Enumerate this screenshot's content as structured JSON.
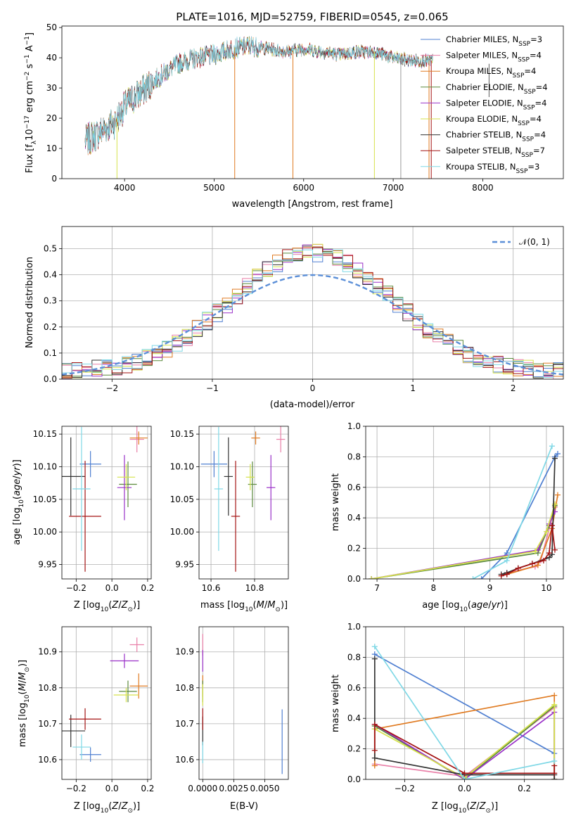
{
  "chart_data": [
    {
      "type": "line",
      "title": "PLATE=1016, MJD=52759, FIBERID=0545, z=0.065",
      "xlabel": "wavelength [Angstrom, rest frame]",
      "ylabel": "Flux [f_λ 10^-17 erg cm^-2 s^-1 A^-1]",
      "xlim": [
        3300,
        8900
      ],
      "ylim": [
        0,
        50.5
      ],
      "xticks": [
        4000,
        5000,
        6000,
        7000,
        8000
      ],
      "yticks": [
        0,
        10,
        20,
        30,
        40,
        50
      ],
      "grid": false,
      "legend_position": "top-right",
      "series": [
        {
          "name": "Chabrier MILES, N_SSP=3",
          "color": "#4f7fd1"
        },
        {
          "name": "Salpeter MILES, N_SSP=4",
          "color": "#e97fa8"
        },
        {
          "name": "Kroupa MILES, N_SSP=4",
          "color": "#e07b22"
        },
        {
          "name": "Chabrier ELODIE, N_SSP=4",
          "color": "#5b8a3c"
        },
        {
          "name": "Salpeter ELODIE, N_SSP=4",
          "color": "#9a30c8"
        },
        {
          "name": "Kroupa ELODIE, N_SSP=4",
          "color": "#d6e24b"
        },
        {
          "name": "Chabrier STELIB, N_SSP=4",
          "color": "#333333"
        },
        {
          "name": "Salpeter STELIB, N_SSP=7",
          "color": "#a41212"
        },
        {
          "name": "Kroupa STELIB, N_SSP=3",
          "color": "#7fd8e6"
        }
      ],
      "continuum_x": [
        3550,
        3700,
        3900,
        4000,
        4200,
        4400,
        4600,
        4800,
        5000,
        5200,
        5400,
        5600,
        5800,
        6000,
        6200,
        6400,
        6600,
        6800,
        7000,
        7200,
        7400,
        7600,
        7800,
        8000,
        8200,
        8400,
        8800
      ],
      "continuum_y": [
        12,
        15,
        19,
        24,
        29,
        34,
        38,
        40,
        41,
        43,
        44,
        43,
        42,
        43,
        42,
        41,
        42,
        42,
        40,
        39,
        39,
        40,
        39,
        38,
        38,
        38,
        37
      ]
    },
    {
      "type": "histogram",
      "xlabel": "(data-model)/error",
      "ylabel": "Normed distribution",
      "xlim": [
        -2.5,
        2.5
      ],
      "ylim": [
        0,
        0.585
      ],
      "xticks": [
        -2,
        -1,
        0,
        1,
        2
      ],
      "yticks": [
        0.0,
        0.1,
        0.2,
        0.3,
        0.4,
        0.5
      ],
      "grid": true,
      "legend_position": "top-right",
      "legend": [
        "N(0, 1)"
      ],
      "bin_width": 0.1,
      "bin_start": -2.5,
      "reference_curve": {
        "name": "N(0, 1)",
        "color": "#5b8fd8",
        "style": "dashed"
      }
    },
    {
      "type": "scatter",
      "xlabel": "Z [log10(Z/Z_sun)]",
      "ylabel": "age [log10(age/yr)]",
      "xlim": [
        -0.28,
        0.22
      ],
      "ylim": [
        9.928,
        10.162
      ],
      "xticks": [
        -0.2,
        0.0,
        0.2
      ],
      "yticks": [
        9.95,
        10.0,
        10.05,
        10.1,
        10.15
      ],
      "grid": true,
      "points": [
        {
          "x": -0.12,
          "y": 10.104,
          "xerr": 0.06,
          "yerr": 0.02,
          "color": "#4f7fd1"
        },
        {
          "x": 0.14,
          "y": 10.142,
          "xerr": 0.04,
          "yerr": 0.02,
          "color": "#e97fa8"
        },
        {
          "x": 0.15,
          "y": 10.144,
          "xerr": 0.05,
          "yerr": 0.01,
          "color": "#e07b22"
        },
        {
          "x": 0.09,
          "y": 10.073,
          "xerr": 0.05,
          "yerr": 0.035,
          "color": "#5b8a3c"
        },
        {
          "x": 0.07,
          "y": 10.068,
          "xerr": 0.04,
          "yerr": 0.05,
          "color": "#9a30c8"
        },
        {
          "x": 0.08,
          "y": 10.084,
          "xerr": 0.05,
          "yerr": 0.02,
          "color": "#d6e24b"
        },
        {
          "x": -0.23,
          "y": 10.085,
          "xerr": 0.08,
          "yerr": 0.06,
          "color": "#333333"
        },
        {
          "x": -0.15,
          "y": 10.024,
          "xerr": 0.09,
          "yerr": 0.085,
          "color": "#a41212"
        },
        {
          "x": -0.17,
          "y": 10.066,
          "xerr": 0.05,
          "yerr": 0.095,
          "color": "#7fd8e6"
        }
      ]
    },
    {
      "type": "scatter",
      "xlabel": "mass [log10(M/M_sun)]",
      "ylabel": "",
      "xlim": [
        10.545,
        10.955
      ],
      "ylim": [
        9.928,
        10.162
      ],
      "xticks": [
        10.6,
        10.8
      ],
      "yticks": [
        9.95,
        10.0,
        10.05,
        10.1,
        10.15
      ],
      "grid": true,
      "points": [
        {
          "x": 10.614,
          "y": 10.104,
          "xerr": 0.06,
          "yerr": 0.02,
          "color": "#4f7fd1"
        },
        {
          "x": 10.92,
          "y": 10.142,
          "xerr": 0.02,
          "yerr": 0.02,
          "color": "#e97fa8"
        },
        {
          "x": 10.805,
          "y": 10.144,
          "xerr": 0.02,
          "yerr": 0.01,
          "color": "#e07b22"
        },
        {
          "x": 10.79,
          "y": 10.073,
          "xerr": 0.02,
          "yerr": 0.035,
          "color": "#5b8a3c"
        },
        {
          "x": 10.875,
          "y": 10.068,
          "xerr": 0.02,
          "yerr": 0.05,
          "color": "#9a30c8"
        },
        {
          "x": 10.78,
          "y": 10.084,
          "xerr": 0.02,
          "yerr": 0.02,
          "color": "#d6e24b"
        },
        {
          "x": 10.68,
          "y": 10.085,
          "xerr": 0.02,
          "yerr": 0.06,
          "color": "#333333"
        },
        {
          "x": 10.713,
          "y": 10.024,
          "xerr": 0.02,
          "yerr": 0.085,
          "color": "#a41212"
        },
        {
          "x": 10.635,
          "y": 10.066,
          "xerr": 0.02,
          "yerr": 0.095,
          "color": "#7fd8e6"
        }
      ]
    },
    {
      "type": "line",
      "xlabel": "age [log10(age/yr)]",
      "ylabel": "mass weight",
      "xlim": [
        6.8,
        10.3
      ],
      "ylim": [
        0,
        1.0
      ],
      "xticks": [
        7,
        8,
        9,
        10
      ],
      "yticks": [
        0.0,
        0.2,
        0.4,
        0.6,
        0.8,
        1.0
      ],
      "grid": true,
      "series": [
        {
          "color": "#4f7fd1",
          "x": [
            8.85,
            9.3,
            10.15,
            10.2
          ],
          "y": [
            0.0,
            0.17,
            0.8,
            0.82
          ]
        },
        {
          "color": "#e97fa8",
          "x": [
            9.3,
            9.8,
            9.9,
            10.15
          ],
          "y": [
            0.04,
            0.08,
            0.12,
            0.47
          ]
        },
        {
          "color": "#e07b22",
          "x": [
            9.3,
            9.85,
            10.1,
            10.2
          ],
          "y": [
            0.03,
            0.09,
            0.33,
            0.55
          ]
        },
        {
          "color": "#5b8a3c",
          "x": [
            6.9,
            9.85,
            10.05,
            10.15
          ],
          "y": [
            0.0,
            0.17,
            0.35,
            0.48
          ]
        },
        {
          "color": "#9a30c8",
          "x": [
            6.9,
            9.85,
            10.05,
            10.15
          ],
          "y": [
            0.0,
            0.19,
            0.36,
            0.44
          ]
        },
        {
          "color": "#d6e24b",
          "x": [
            6.9,
            9.8,
            10.0,
            10.15
          ],
          "y": [
            0.0,
            0.18,
            0.31,
            0.49
          ]
        },
        {
          "color": "#333333",
          "x": [
            9.2,
            9.3,
            9.5,
            9.75,
            10.05,
            10.1,
            10.15
          ],
          "y": [
            0.03,
            0.04,
            0.07,
            0.1,
            0.14,
            0.16,
            0.79
          ]
        },
        {
          "color": "#a41212",
          "x": [
            9.2,
            9.3,
            9.5,
            9.75,
            9.95,
            10.05,
            10.1,
            10.15
          ],
          "y": [
            0.02,
            0.03,
            0.07,
            0.1,
            0.12,
            0.17,
            0.35,
            0.19
          ]
        },
        {
          "color": "#7fd8e6",
          "x": [
            8.7,
            9.3,
            10.1
          ],
          "y": [
            0.0,
            0.12,
            0.87
          ]
        }
      ]
    },
    {
      "type": "scatter",
      "xlabel": "Z [log10(Z/Z_sun)]",
      "ylabel": "mass [log10(M/M_sun)]",
      "xlim": [
        -0.28,
        0.22
      ],
      "ylim": [
        10.545,
        10.97
      ],
      "xticks": [
        -0.2,
        0.0,
        0.2
      ],
      "yticks": [
        10.6,
        10.7,
        10.8,
        10.9
      ],
      "grid": true,
      "points": [
        {
          "x": -0.12,
          "y": 10.614,
          "xerr": 0.06,
          "yerr": 0.02,
          "color": "#4f7fd1"
        },
        {
          "x": 0.14,
          "y": 10.92,
          "xerr": 0.04,
          "yerr": 0.02,
          "color": "#e97fa8"
        },
        {
          "x": 0.15,
          "y": 10.805,
          "xerr": 0.05,
          "yerr": 0.035,
          "color": "#e07b22"
        },
        {
          "x": 0.09,
          "y": 10.79,
          "xerr": 0.05,
          "yerr": 0.03,
          "color": "#5b8a3c"
        },
        {
          "x": 0.07,
          "y": 10.875,
          "xerr": 0.08,
          "yerr": 0.02,
          "color": "#9a30c8"
        },
        {
          "x": 0.08,
          "y": 10.78,
          "xerr": 0.07,
          "yerr": 0.02,
          "color": "#d6e24b"
        },
        {
          "x": -0.23,
          "y": 10.68,
          "xerr": 0.08,
          "yerr": 0.045,
          "color": "#333333"
        },
        {
          "x": -0.15,
          "y": 10.713,
          "xerr": 0.09,
          "yerr": 0.03,
          "color": "#a41212"
        },
        {
          "x": -0.17,
          "y": 10.635,
          "xerr": 0.05,
          "yerr": 0.035,
          "color": "#7fd8e6"
        }
      ]
    },
    {
      "type": "scatter",
      "xlabel": "E(B-V)",
      "ylabel": "",
      "xlim": [
        -0.0003,
        0.0069
      ],
      "ylim": [
        10.545,
        10.97
      ],
      "xticks": [
        0.0,
        0.0025,
        0.005
      ],
      "xticklabels": [
        "0.0000",
        "0.0025",
        "0.0050"
      ],
      "yticks": [
        10.6,
        10.7,
        10.8,
        10.9
      ],
      "grid": true,
      "points": [
        {
          "x": 0.0064,
          "y": 10.65,
          "yerr": 0.09,
          "color": "#4f7fd1"
        },
        {
          "x": 0.0,
          "y": 10.92,
          "yerr": 0.03,
          "color": "#e97fa8"
        },
        {
          "x": 0.0,
          "y": 10.805,
          "yerr": 0.03,
          "color": "#e07b22"
        },
        {
          "x": 0.0,
          "y": 10.79,
          "yerr": 0.03,
          "color": "#5b8a3c"
        },
        {
          "x": 0.0,
          "y": 10.875,
          "yerr": 0.03,
          "color": "#9a30c8"
        },
        {
          "x": 0.0,
          "y": 10.78,
          "yerr": 0.03,
          "color": "#d6e24b"
        },
        {
          "x": 0.0,
          "y": 10.68,
          "yerr": 0.04,
          "color": "#333333"
        },
        {
          "x": 0.0,
          "y": 10.713,
          "yerr": 0.03,
          "color": "#a41212"
        },
        {
          "x": 0.0,
          "y": 10.62,
          "yerr": 0.03,
          "color": "#7fd8e6"
        }
      ]
    },
    {
      "type": "line",
      "xlabel": "Z [log10(Z/Z_sun)]",
      "ylabel": "mass weight",
      "xlim": [
        -0.33,
        0.33
      ],
      "ylim": [
        0,
        1.0
      ],
      "xticks": [
        -0.2,
        0.0,
        0.2
      ],
      "yticks": [
        0.0,
        0.2,
        0.4,
        0.6,
        0.8,
        1.0
      ],
      "grid": true,
      "series": [
        {
          "color": "#4f7fd1",
          "x": [
            -0.3,
            0.3
          ],
          "y": [
            0.82,
            0.17
          ]
        },
        {
          "color": "#e97fa8",
          "x": [
            -0.3,
            0.0,
            0.3
          ],
          "y": [
            0.1,
            0.02,
            0.47
          ]
        },
        {
          "color": "#e07b22",
          "x": [
            -0.3,
            -0.3,
            0.3,
            0.3
          ],
          "y": [
            0.09,
            0.33,
            0.55,
            0.0
          ]
        },
        {
          "color": "#5b8a3c",
          "x": [
            -0.3,
            0.0,
            0.3,
            0.3
          ],
          "y": [
            0.35,
            0.0,
            0.48,
            0.0
          ]
        },
        {
          "color": "#9a30c8",
          "x": [
            -0.3,
            0.0,
            0.3,
            0.3
          ],
          "y": [
            0.36,
            0.0,
            0.44,
            0.0
          ]
        },
        {
          "color": "#d6e24b",
          "x": [
            -0.3,
            0.0,
            0.3,
            0.3
          ],
          "y": [
            0.33,
            0.01,
            0.49,
            0.0
          ]
        },
        {
          "color": "#333333",
          "x": [
            -0.3,
            -0.3,
            0.0,
            0.3,
            0.3
          ],
          "y": [
            0.79,
            0.14,
            0.03,
            0.03,
            0.0
          ]
        },
        {
          "color": "#a41212",
          "x": [
            -0.3,
            -0.3,
            0.0,
            0.3,
            0.3
          ],
          "y": [
            0.19,
            0.36,
            0.04,
            0.04,
            0.09
          ]
        },
        {
          "color": "#7fd8e6",
          "x": [
            -0.3,
            0.0,
            0.3
          ],
          "y": [
            0.87,
            0.0,
            0.12
          ]
        }
      ]
    }
  ]
}
